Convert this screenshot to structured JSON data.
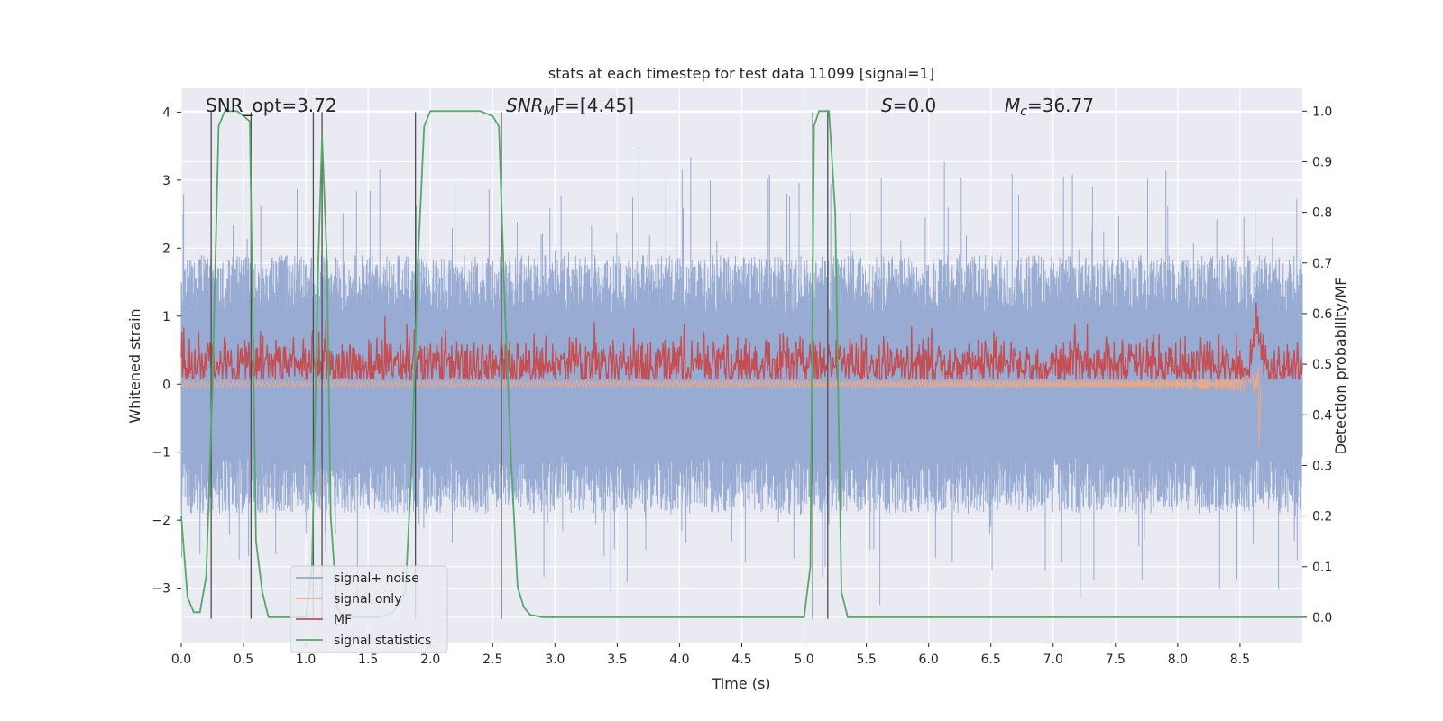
{
  "chart_data": {
    "type": "line",
    "title": "stats at each timestep for test data 11099 [signal=1]",
    "xlabel": "Time (s)",
    "ylabel_left": "Whitened strain",
    "ylabel_right": "Detection probability/MF",
    "xlim": [
      0.0,
      9.0
    ],
    "ylim_left": [
      -3.8,
      4.35
    ],
    "ylim_right": [
      -0.05,
      1.045
    ],
    "x_ticks": [
      0.0,
      0.5,
      1.0,
      1.5,
      2.0,
      2.5,
      3.0,
      3.5,
      4.0,
      4.5,
      5.0,
      5.5,
      6.0,
      6.5,
      7.0,
      7.5,
      8.0,
      8.5
    ],
    "x_tick_labels": [
      "0.0",
      "0.5",
      "1.0",
      "1.5",
      "2.0",
      "2.5",
      "3.0",
      "3.5",
      "4.0",
      "4.5",
      "5.0",
      "5.5",
      "6.0",
      "6.5",
      "7.0",
      "7.5",
      "8.0",
      "8.5"
    ],
    "y_left_ticks": [
      4,
      3,
      2,
      1,
      0,
      -1,
      -2,
      -3
    ],
    "y_left_tick_labels": [
      "4",
      "3",
      "2",
      "1",
      "0",
      "−1",
      "−2",
      "−3"
    ],
    "y_right_ticks": [
      1.0,
      0.9,
      0.8,
      0.7,
      0.6,
      0.5,
      0.4,
      0.3,
      0.2,
      0.1,
      0.0
    ],
    "y_right_tick_labels": [
      "1.0",
      "0.9",
      "0.8",
      "0.7",
      "0.6",
      "0.5",
      "0.4",
      "0.3",
      "0.2",
      "0.1",
      "0.0"
    ],
    "annotations": {
      "snr_opt": "SNR_opt=3.72",
      "snr_mf": {
        "prefix": "SNR",
        "sub": "M",
        "suffix": "F=[4.45]"
      },
      "s": {
        "var": "S",
        "suffix": "=0.0"
      },
      "mc": {
        "var": "M",
        "sub": "c",
        "suffix": "=36.77"
      }
    },
    "series": [
      {
        "name": "signal+ noise",
        "color": "#92a8d1",
        "description": "whitened noisy strain, noise envelope approx ±2 with peaks to about 3.6 and -3.4",
        "envelope": {
          "typical": 1.9,
          "max_peak": 3.65,
          "min_peak": -3.45
        }
      },
      {
        "name": "signal only",
        "color": "#e8a98b",
        "description": "chirp signal, near zero until growing around 8.0 s, peak about -0.9 at 8.65 s",
        "merger_time": 8.65,
        "peak_amplitude": 0.92
      },
      {
        "name": "MF",
        "color": "#c44e52",
        "description": "matched filter output on right axis, baseline ~0.5 with fluctuations",
        "baseline": 0.5,
        "spread": 0.05,
        "peak_time": 8.63,
        "peak_value": 0.6
      },
      {
        "name": "signal statistics",
        "color": "#55a868",
        "axis": "right",
        "x": [
          0.0,
          0.05,
          0.1,
          0.15,
          0.2,
          0.25,
          0.3,
          0.35,
          0.4,
          0.45,
          0.5,
          0.55,
          0.6,
          0.65,
          0.7,
          0.8,
          1.0,
          1.05,
          1.1,
          1.13,
          1.17,
          1.2,
          1.25,
          1.3,
          1.4,
          1.6,
          1.7,
          1.8,
          1.85,
          1.9,
          1.95,
          2.0,
          2.2,
          2.4,
          2.5,
          2.55,
          2.6,
          2.65,
          2.7,
          2.75,
          2.8,
          2.9,
          3.0,
          3.5,
          4.0,
          4.5,
          5.0,
          5.05,
          5.08,
          5.12,
          5.15,
          5.2,
          5.25,
          5.3,
          5.35,
          5.4,
          5.5,
          6.0,
          7.0,
          8.0,
          9.0
        ],
        "values": [
          0.2,
          0.04,
          0.01,
          0.01,
          0.08,
          0.45,
          0.97,
          1.0,
          1.0,
          1.0,
          0.99,
          0.98,
          0.15,
          0.05,
          0.0,
          0.0,
          0.0,
          0.1,
          0.7,
          0.95,
          0.7,
          0.2,
          0.02,
          0.0,
          0.0,
          0.0,
          0.01,
          0.05,
          0.3,
          0.7,
          0.97,
          1.0,
          1.0,
          1.0,
          0.99,
          0.97,
          0.6,
          0.3,
          0.06,
          0.02,
          0.005,
          0.0,
          0.0,
          0.0,
          0.0,
          0.0,
          0.0,
          0.1,
          0.97,
          1.0,
          1.0,
          1.0,
          0.8,
          0.05,
          0.0,
          0.0,
          0.0,
          0.0,
          0.0,
          0.0,
          0.0
        ]
      }
    ],
    "vertical_markers": {
      "color": "#505050",
      "x": [
        0.24,
        0.56,
        1.06,
        1.13,
        1.88,
        2.57,
        5.07,
        5.19
      ],
      "y_range_left": [
        -3.45,
        4.0
      ]
    },
    "legend": {
      "placement": "lower-left",
      "entries": [
        "signal+ noise",
        "signal only",
        "MF",
        "signal statistics"
      ]
    }
  }
}
